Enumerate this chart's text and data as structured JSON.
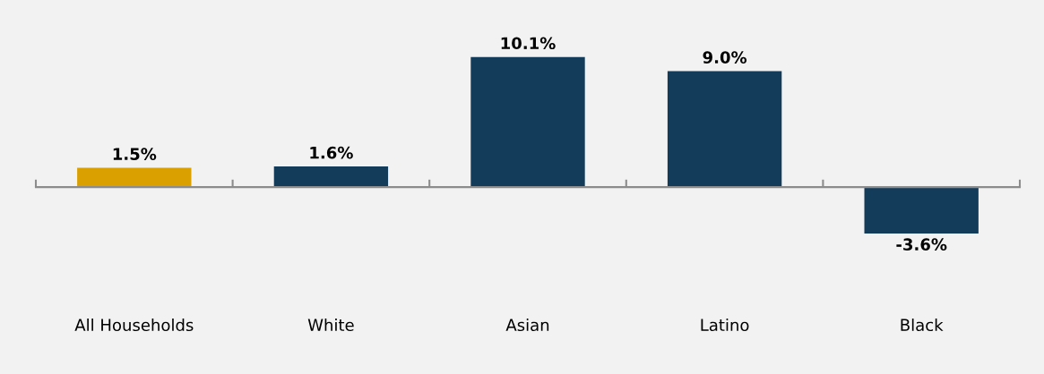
{
  "chart_data": {
    "type": "bar",
    "categories": [
      "All Households",
      "White",
      "Asian",
      "Latino",
      "Black"
    ],
    "values": [
      1.5,
      1.6,
      10.1,
      9.0,
      -3.6
    ],
    "colors": [
      "#d9a000",
      "#133c5b",
      "#133c5b",
      "#133c5b",
      "#133c5b"
    ],
    "value_labels": [
      "1.5%",
      "1.6%",
      "10.1%",
      "9.0%",
      "-3.6%"
    ],
    "grid": false,
    "legend": false
  }
}
